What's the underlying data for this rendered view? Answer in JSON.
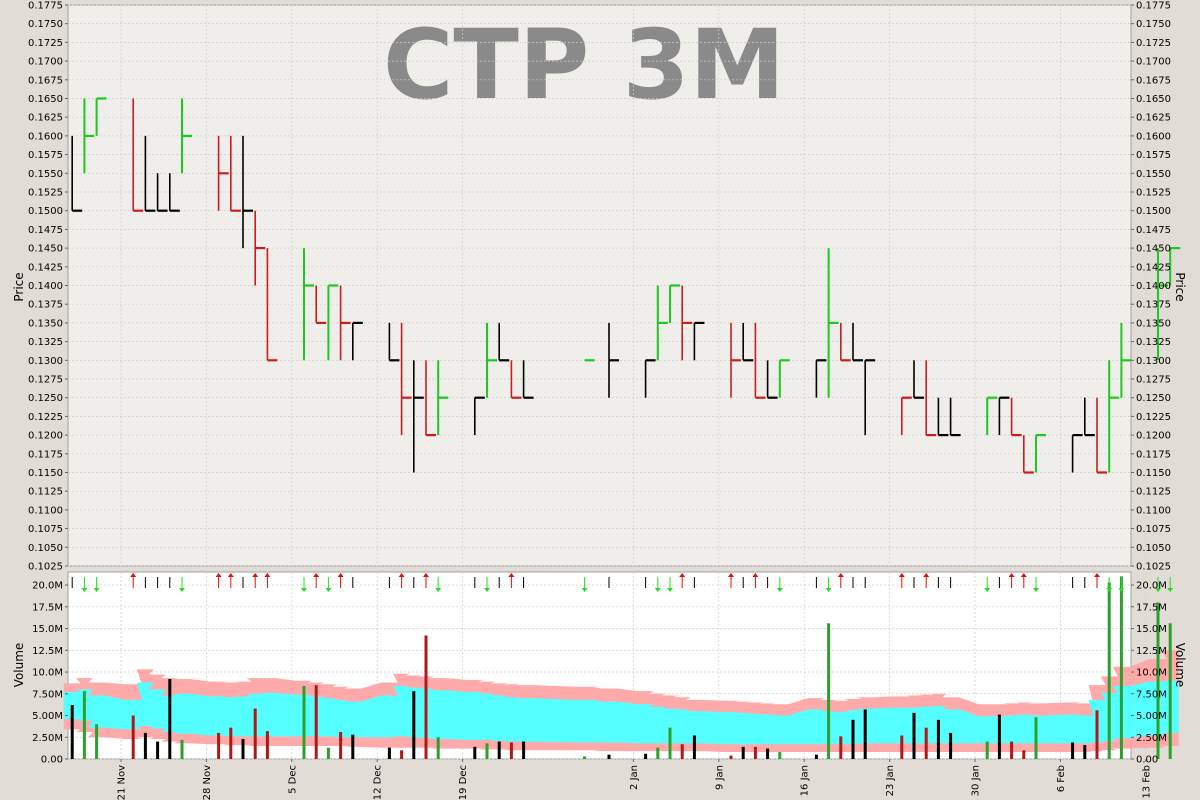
{
  "chart_data": [
    {
      "type": "ohlc",
      "title": "CTP 3M",
      "ylabel": "Price",
      "ylim": [
        0.1025,
        0.1775
      ],
      "yticks": [
        "0.1025",
        "0.1050",
        "0.1075",
        "0.1100",
        "0.1125",
        "0.1150",
        "0.1175",
        "0.1200",
        "0.1225",
        "0.1250",
        "0.1275",
        "0.1300",
        "0.1325",
        "0.1350",
        "0.1375",
        "0.1400",
        "0.1425",
        "0.1450",
        "0.1475",
        "0.1500",
        "0.1525",
        "0.1550",
        "0.1575",
        "0.1600",
        "0.1625",
        "0.1650",
        "0.1675",
        "0.1700",
        "0.1725",
        "0.1750",
        "0.1775"
      ],
      "grid": true,
      "colors": {
        "up": "#1ec81e",
        "down": "#c81e1e",
        "flat": "#000000"
      },
      "bars": [
        {
          "date": "2021-11-17",
          "high": 0.16,
          "low": 0.15,
          "close": 0.15,
          "dir": "flat"
        },
        {
          "date": "2021-11-18",
          "high": 0.165,
          "low": 0.155,
          "close": 0.16,
          "dir": "up"
        },
        {
          "date": "2021-11-19",
          "high": 0.165,
          "low": 0.16,
          "close": 0.165,
          "dir": "up"
        },
        {
          "date": "2021-11-22",
          "high": 0.165,
          "low": 0.15,
          "close": 0.15,
          "dir": "down"
        },
        {
          "date": "2021-11-23",
          "high": 0.16,
          "low": 0.15,
          "close": 0.15,
          "dir": "flat"
        },
        {
          "date": "2021-11-24",
          "high": 0.155,
          "low": 0.15,
          "close": 0.15,
          "dir": "flat"
        },
        {
          "date": "2021-11-25",
          "high": 0.155,
          "low": 0.15,
          "close": 0.15,
          "dir": "flat"
        },
        {
          "date": "2021-11-26",
          "high": 0.165,
          "low": 0.155,
          "close": 0.16,
          "dir": "up"
        },
        {
          "date": "2021-11-29",
          "high": 0.16,
          "low": 0.15,
          "close": 0.155,
          "dir": "down"
        },
        {
          "date": "2021-11-30",
          "high": 0.16,
          "low": 0.15,
          "close": 0.15,
          "dir": "down"
        },
        {
          "date": "2021-12-01",
          "high": 0.16,
          "low": 0.145,
          "close": 0.15,
          "dir": "flat"
        },
        {
          "date": "2021-12-02",
          "high": 0.15,
          "low": 0.14,
          "close": 0.145,
          "dir": "down"
        },
        {
          "date": "2021-12-03",
          "high": 0.145,
          "low": 0.13,
          "close": 0.13,
          "dir": "down"
        },
        {
          "date": "2021-12-06",
          "high": 0.145,
          "low": 0.13,
          "close": 0.14,
          "dir": "up"
        },
        {
          "date": "2021-12-07",
          "high": 0.14,
          "low": 0.135,
          "close": 0.135,
          "dir": "down"
        },
        {
          "date": "2021-12-08",
          "high": 0.14,
          "low": 0.13,
          "close": 0.14,
          "dir": "up"
        },
        {
          "date": "2021-12-09",
          "high": 0.14,
          "low": 0.13,
          "close": 0.135,
          "dir": "down"
        },
        {
          "date": "2021-12-10",
          "high": 0.135,
          "low": 0.13,
          "close": 0.135,
          "dir": "flat"
        },
        {
          "date": "2021-12-13",
          "high": 0.135,
          "low": 0.13,
          "close": 0.13,
          "dir": "flat"
        },
        {
          "date": "2021-12-14",
          "high": 0.135,
          "low": 0.12,
          "close": 0.125,
          "dir": "down"
        },
        {
          "date": "2021-12-15",
          "high": 0.13,
          "low": 0.115,
          "close": 0.125,
          "dir": "flat"
        },
        {
          "date": "2021-12-16",
          "high": 0.13,
          "low": 0.12,
          "close": 0.12,
          "dir": "down"
        },
        {
          "date": "2021-12-17",
          "high": 0.13,
          "low": 0.12,
          "close": 0.125,
          "dir": "up"
        },
        {
          "date": "2021-12-20",
          "high": 0.125,
          "low": 0.12,
          "close": 0.125,
          "dir": "flat"
        },
        {
          "date": "2021-12-21",
          "high": 0.135,
          "low": 0.125,
          "close": 0.13,
          "dir": "up"
        },
        {
          "date": "2021-12-22",
          "high": 0.135,
          "low": 0.13,
          "close": 0.13,
          "dir": "flat"
        },
        {
          "date": "2021-12-23",
          "high": 0.13,
          "low": 0.125,
          "close": 0.125,
          "dir": "down"
        },
        {
          "date": "2021-12-24",
          "high": 0.13,
          "low": 0.125,
          "close": 0.125,
          "dir": "flat"
        },
        {
          "date": "2021-12-29",
          "high": 0.13,
          "low": 0.13,
          "close": 0.13,
          "dir": "up"
        },
        {
          "date": "2021-12-31",
          "high": 0.135,
          "low": 0.125,
          "close": 0.13,
          "dir": "flat"
        },
        {
          "date": "2022-01-03",
          "high": 0.13,
          "low": 0.125,
          "close": 0.13,
          "dir": "flat"
        },
        {
          "date": "2022-01-04",
          "high": 0.14,
          "low": 0.13,
          "close": 0.135,
          "dir": "up"
        },
        {
          "date": "2022-01-05",
          "high": 0.14,
          "low": 0.135,
          "close": 0.14,
          "dir": "up"
        },
        {
          "date": "2022-01-06",
          "high": 0.14,
          "low": 0.13,
          "close": 0.135,
          "dir": "down"
        },
        {
          "date": "2022-01-07",
          "high": 0.135,
          "low": 0.13,
          "close": 0.135,
          "dir": "flat"
        },
        {
          "date": "2022-01-10",
          "high": 0.135,
          "low": 0.125,
          "close": 0.13,
          "dir": "down"
        },
        {
          "date": "2022-01-11",
          "high": 0.135,
          "low": 0.13,
          "close": 0.13,
          "dir": "flat"
        },
        {
          "date": "2022-01-12",
          "high": 0.135,
          "low": 0.125,
          "close": 0.125,
          "dir": "down"
        },
        {
          "date": "2022-01-13",
          "high": 0.13,
          "low": 0.125,
          "close": 0.125,
          "dir": "flat"
        },
        {
          "date": "2022-01-14",
          "high": 0.13,
          "low": 0.125,
          "close": 0.13,
          "dir": "up"
        },
        {
          "date": "2022-01-17",
          "high": 0.13,
          "low": 0.125,
          "close": 0.13,
          "dir": "flat"
        },
        {
          "date": "2022-01-18",
          "high": 0.145,
          "low": 0.125,
          "close": 0.135,
          "dir": "up"
        },
        {
          "date": "2022-01-19",
          "high": 0.135,
          "low": 0.13,
          "close": 0.13,
          "dir": "down"
        },
        {
          "date": "2022-01-20",
          "high": 0.135,
          "low": 0.13,
          "close": 0.13,
          "dir": "flat"
        },
        {
          "date": "2022-01-21",
          "high": 0.13,
          "low": 0.12,
          "close": 0.13,
          "dir": "flat"
        },
        {
          "date": "2022-01-24",
          "high": 0.125,
          "low": 0.12,
          "close": 0.125,
          "dir": "down"
        },
        {
          "date": "2022-01-25",
          "high": 0.13,
          "low": 0.125,
          "close": 0.125,
          "dir": "flat"
        },
        {
          "date": "2022-01-26",
          "high": 0.13,
          "low": 0.12,
          "close": 0.12,
          "dir": "down"
        },
        {
          "date": "2022-01-27",
          "high": 0.125,
          "low": 0.12,
          "close": 0.12,
          "dir": "flat"
        },
        {
          "date": "2022-01-28",
          "high": 0.125,
          "low": 0.12,
          "close": 0.12,
          "dir": "flat"
        },
        {
          "date": "2022-01-31",
          "high": 0.125,
          "low": 0.12,
          "close": 0.125,
          "dir": "up"
        },
        {
          "date": "2022-02-01",
          "high": 0.125,
          "low": 0.12,
          "close": 0.125,
          "dir": "flat"
        },
        {
          "date": "2022-02-02",
          "high": 0.125,
          "low": 0.12,
          "close": 0.12,
          "dir": "down"
        },
        {
          "date": "2022-02-03",
          "high": 0.12,
          "low": 0.115,
          "close": 0.115,
          "dir": "down"
        },
        {
          "date": "2022-02-04",
          "high": 0.12,
          "low": 0.115,
          "close": 0.12,
          "dir": "up"
        },
        {
          "date": "2022-02-07",
          "high": 0.12,
          "low": 0.115,
          "close": 0.12,
          "dir": "flat"
        },
        {
          "date": "2022-02-08",
          "high": 0.125,
          "low": 0.12,
          "close": 0.12,
          "dir": "flat"
        },
        {
          "date": "2022-02-09",
          "high": 0.125,
          "low": 0.115,
          "close": 0.115,
          "dir": "down"
        },
        {
          "date": "2022-02-10",
          "high": 0.13,
          "low": 0.115,
          "close": 0.125,
          "dir": "up"
        },
        {
          "date": "2022-02-11",
          "high": 0.135,
          "low": 0.125,
          "close": 0.13,
          "dir": "up"
        },
        {
          "date": "2022-02-14",
          "high": 0.145,
          "low": 0.13,
          "close": 0.14,
          "dir": "up"
        },
        {
          "date": "2022-02-15",
          "high": 0.145,
          "low": 0.14,
          "close": 0.145,
          "dir": "up"
        }
      ]
    },
    {
      "type": "bar",
      "ylabel": "Volume",
      "ylim": [
        0,
        21500000
      ],
      "yticks": [
        "0.00",
        "2.50M",
        "5.00M",
        "7.50M",
        "10.0M",
        "12.5M",
        "15.0M",
        "17.5M",
        "20.0M"
      ],
      "grid": true,
      "band_colors": {
        "outer": "#ffaaaa",
        "inner": "#55ffff"
      },
      "volumes": [
        6.2,
        7.8,
        4.0,
        5.0,
        3.0,
        2.0,
        9.2,
        2.2,
        3.0,
        3.6,
        2.3,
        5.8,
        3.2,
        8.4,
        8.5,
        1.3,
        3.1,
        2.8,
        1.3,
        1.0,
        7.8,
        14.2,
        2.5,
        1.4,
        1.8,
        2.0,
        1.9,
        2.0,
        0.3,
        0.5,
        0.6,
        1.3,
        3.6,
        1.7,
        2.7,
        0.4,
        1.4,
        1.4,
        1.2,
        0.8,
        0.5,
        15.6,
        2.6,
        4.5,
        5.7,
        2.7,
        5.3,
        3.6,
        4.5,
        3.0,
        2.0,
        5.1,
        2.0,
        1.0,
        4.8,
        1.9,
        1.6,
        5.6,
        20.3,
        21.0,
        18.0,
        15.6
      ],
      "bands": {
        "outer_top": [
          8.7,
          9.3,
          8.8,
          8.6,
          10.3,
          9.7,
          9.3,
          9.2,
          8.9,
          8.8,
          8.9,
          9.3,
          9.3,
          9.0,
          8.8,
          8.6,
          8.3,
          8.1,
          8.8,
          9.8,
          9.6,
          9.5,
          9.3,
          9.1,
          8.9,
          8.7,
          8.6,
          8.5,
          8.3,
          8.1,
          7.8,
          7.5,
          7.3,
          7.1,
          6.8,
          6.7,
          6.6,
          6.5,
          6.4,
          6.3,
          7.0,
          6.8,
          6.7,
          6.9,
          7.1,
          7.2,
          7.3,
          7.4,
          7.5,
          7.1,
          6.3,
          6.3,
          6.4,
          6.5,
          6.4,
          6.5,
          6.4,
          8.5,
          9.5,
          10.6,
          11.5,
          12.5
        ],
        "inner_top": [
          7.7,
          8.0,
          7.3,
          6.8,
          8.8,
          8.0,
          7.3,
          7.5,
          7.2,
          7.1,
          7.2,
          7.5,
          7.6,
          7.4,
          7.2,
          7.0,
          6.8,
          6.6,
          7.3,
          8.4,
          8.2,
          8.1,
          7.9,
          7.7,
          7.5,
          7.3,
          7.1,
          7.0,
          6.8,
          6.6,
          6.3,
          6.0,
          5.8,
          5.7,
          5.5,
          5.4,
          5.3,
          5.2,
          5.1,
          5.0,
          5.7,
          5.5,
          5.4,
          5.6,
          5.8,
          5.9,
          5.9,
          6.0,
          6.1,
          5.7,
          4.9,
          4.9,
          5.0,
          5.1,
          5.0,
          5.1,
          5.0,
          6.8,
          7.6,
          8.4,
          8.9,
          9.0
        ],
        "inner_bottom": [
          4.6,
          4.4,
          3.6,
          3.4,
          3.8,
          3.5,
          3.1,
          2.9,
          2.7,
          2.6,
          2.6,
          2.6,
          2.6,
          2.6,
          2.6,
          2.6,
          2.5,
          2.5,
          2.5,
          2.6,
          2.5,
          2.4,
          2.3,
          2.2,
          2.2,
          2.1,
          2.0,
          2.0,
          1.9,
          1.9,
          1.8,
          1.8,
          1.8,
          1.8,
          1.8,
          1.7,
          1.7,
          1.7,
          1.7,
          1.7,
          1.7,
          1.7,
          1.7,
          1.7,
          1.8,
          1.8,
          1.8,
          1.8,
          1.8,
          1.8,
          1.8,
          1.8,
          1.8,
          1.8,
          1.8,
          1.8,
          1.8,
          1.9,
          2.1,
          2.4,
          2.7,
          3.0
        ],
        "outer_bottom": [
          3.4,
          3.1,
          2.5,
          2.3,
          2.5,
          2.3,
          2.0,
          1.8,
          1.7,
          1.6,
          1.6,
          1.5,
          1.5,
          1.5,
          1.5,
          1.5,
          1.5,
          1.4,
          1.3,
          1.3,
          1.3,
          1.3,
          1.2,
          1.2,
          1.1,
          1.1,
          1.0,
          1.0,
          1.0,
          0.9,
          0.9,
          0.9,
          0.9,
          0.9,
          0.9,
          0.8,
          0.8,
          0.8,
          0.8,
          0.8,
          0.8,
          0.8,
          0.8,
          0.8,
          0.8,
          0.8,
          0.8,
          0.8,
          0.8,
          0.8,
          0.8,
          0.8,
          0.8,
          0.8,
          0.8,
          0.8,
          0.8,
          0.9,
          1.0,
          1.2,
          1.3,
          1.5
        ]
      },
      "volume_unit": 1000000
    }
  ],
  "xaxis": {
    "tick_labels": [
      {
        "date": "2021-11-21",
        "label": "21 Nov"
      },
      {
        "date": "2021-11-28",
        "label": "28 Nov"
      },
      {
        "date": "2021-12-05",
        "label": "5 Dec"
      },
      {
        "date": "2021-12-12",
        "label": "12 Dec"
      },
      {
        "date": "2021-12-19",
        "label": "19 Dec"
      },
      {
        "date": "2022-01-02",
        "label": "2 Jan"
      },
      {
        "date": "2022-01-09",
        "label": "9 Jan"
      },
      {
        "date": "2022-01-16",
        "label": "16 Jan"
      },
      {
        "date": "2022-01-23",
        "label": "23 Jan"
      },
      {
        "date": "2022-01-30",
        "label": "30 Jan"
      },
      {
        "date": "2022-02-06",
        "label": "6 Feb"
      },
      {
        "date": "2022-02-13",
        "label": "13 Feb"
      }
    ]
  }
}
